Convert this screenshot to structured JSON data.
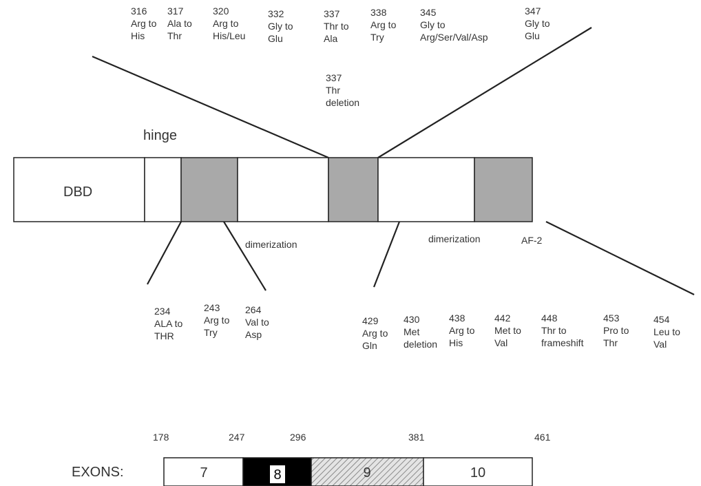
{
  "protein": {
    "domains": [
      {
        "key": "dbd",
        "label": "DBD",
        "fill": "#ffffff"
      },
      {
        "key": "hinge-seg",
        "label": "",
        "fill": "#ffffff"
      },
      {
        "key": "dim1",
        "label": "",
        "fill": "#a9a9a9"
      },
      {
        "key": "mid1",
        "label": "",
        "fill": "#ffffff"
      },
      {
        "key": "mut-box",
        "label": "",
        "fill": "#a9a9a9"
      },
      {
        "key": "mid2",
        "label": "",
        "fill": "#ffffff"
      },
      {
        "key": "af2",
        "label": "",
        "fill": "#a9a9a9"
      }
    ],
    "hinge_label": "hinge",
    "dimerization_label_1": "dimerization",
    "dimerization_label_2": "dimerization",
    "af2_label": "AF-2"
  },
  "top_mutations": [
    {
      "pos": "316",
      "line1": "Arg to",
      "line2": "His"
    },
    {
      "pos": "317",
      "line1": "Ala to",
      "line2": "Thr"
    },
    {
      "pos": "320",
      "line1": "Arg to",
      "line2": "His/Leu"
    },
    {
      "pos": "332",
      "line1": "Gly to",
      "line2": "Glu"
    },
    {
      "pos": "337",
      "line1": "Thr to",
      "line2": "Ala"
    },
    {
      "pos": "338",
      "line1": "Arg to",
      "line2": "Try"
    },
    {
      "pos": "345",
      "line1": "Gly to",
      "line2": "Arg/Ser/Val/Asp"
    },
    {
      "pos": "347",
      "line1": "Gly to",
      "line2": "Glu"
    }
  ],
  "top_extra": {
    "pos": "337",
    "line1": "Thr",
    "line2": "deletion"
  },
  "bottom_left_mutations": [
    {
      "pos": "234",
      "line1": "ALA to",
      "line2": "THR"
    },
    {
      "pos": "243",
      "line1": "Arg to",
      "line2": "Try"
    },
    {
      "pos": "264",
      "line1": "Val to",
      "line2": "Asp"
    }
  ],
  "bottom_right_mutations": [
    {
      "pos": "429",
      "line1": "Arg to",
      "line2": "Gln"
    },
    {
      "pos": "430",
      "line1": "Met",
      "line2": "deletion"
    },
    {
      "pos": "438",
      "line1": "Arg to",
      "line2": "His"
    },
    {
      "pos": "442",
      "line1": "Met to",
      "line2": "Val"
    },
    {
      "pos": "448",
      "line1": "Thr to",
      "line2": "frameshift"
    },
    {
      "pos": "453",
      "line1": "Pro to",
      "line2": "Thr"
    },
    {
      "pos": "454",
      "line1": "Leu to",
      "line2": "Val"
    }
  ],
  "exons": {
    "label": "EXONS:",
    "boundaries": [
      "178",
      "247",
      "296",
      "381",
      "461"
    ],
    "segments": [
      {
        "label": "7",
        "style": "white"
      },
      {
        "label": "8",
        "style": "black"
      },
      {
        "label": "9",
        "style": "hatched"
      },
      {
        "label": "10",
        "style": "white"
      }
    ]
  },
  "colors": {
    "shaded": "#a9a9a9",
    "line": "#222222",
    "exon8": "#000000"
  }
}
